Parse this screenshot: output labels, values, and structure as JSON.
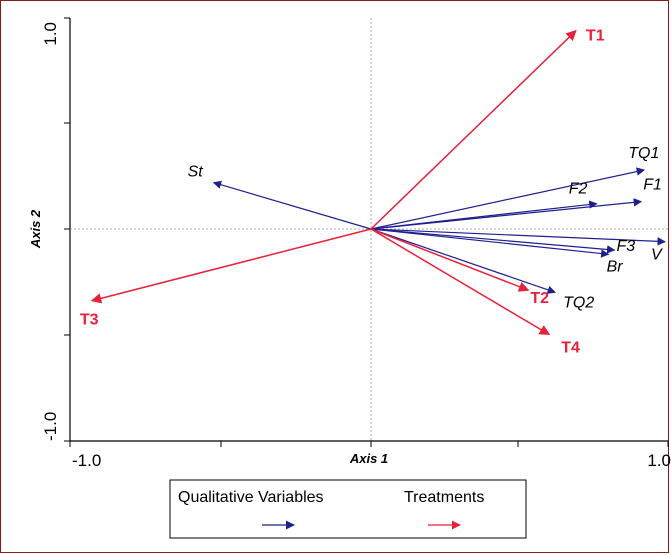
{
  "chart_data": {
    "type": "biplot",
    "xlabel": "Axis 1",
    "ylabel": "Axis 2",
    "xlim": [
      -1.0,
      1.0
    ],
    "ylim": [
      -1.0,
      1.0
    ],
    "x_tick_labels": [
      "-1.0",
      "1.0"
    ],
    "y_tick_labels": [
      "1.0",
      "-1.0"
    ],
    "grid": false,
    "legend_position": "bottom",
    "series": [
      {
        "name": "Qualitative Variables",
        "color": "#1f1f8f",
        "vectors": [
          {
            "label": "TQ1",
            "x": 0.92,
            "y": 0.28
          },
          {
            "label": "F1",
            "x": 0.91,
            "y": 0.13
          },
          {
            "label": "F2",
            "x": 0.76,
            "y": 0.12
          },
          {
            "label": "V",
            "x": 0.99,
            "y": -0.06
          },
          {
            "label": "F3",
            "x": 0.82,
            "y": -0.1
          },
          {
            "label": "Br",
            "x": 0.8,
            "y": -0.12
          },
          {
            "label": "TQ2",
            "x": 0.62,
            "y": -0.3
          },
          {
            "label": "St",
            "x": -0.53,
            "y": 0.22
          }
        ]
      },
      {
        "name": "Treatments",
        "color": "#e8213a",
        "vectors": [
          {
            "label": "T1",
            "x": 0.69,
            "y": 0.94
          },
          {
            "label": "T2",
            "x": 0.53,
            "y": -0.29
          },
          {
            "label": "T3",
            "x": -0.94,
            "y": -0.34
          },
          {
            "label": "T4",
            "x": 0.6,
            "y": -0.5
          }
        ]
      }
    ]
  }
}
